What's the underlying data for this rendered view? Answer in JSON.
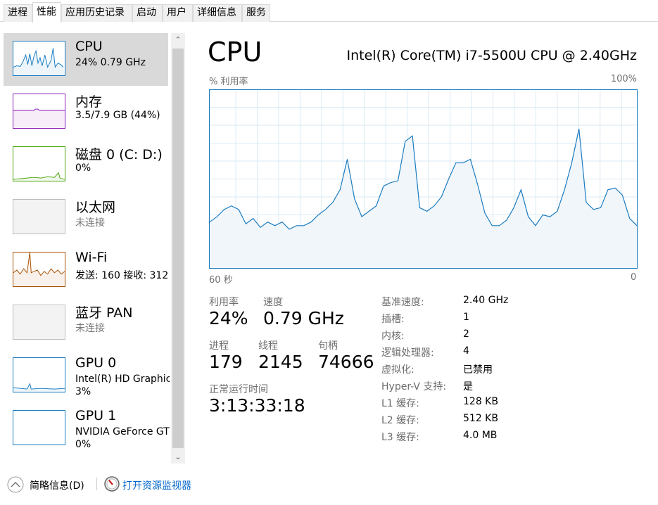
{
  "tabs": [
    "进程",
    "性能",
    "应用历史记录",
    "启动",
    "用户",
    "详细信息",
    "服务"
  ],
  "active_tab": 1,
  "sidebar": {
    "items": [
      {
        "name": "CPU",
        "sub": "24% 0.79 GHz",
        "color": "#1a7cc1"
      },
      {
        "name": "内存",
        "sub": "3.5/7.9 GB (44%)",
        "color": "#8e1cb3"
      },
      {
        "name": "磁盘 0 (C: D:)",
        "sub": "0%",
        "color": "#4da60c"
      },
      {
        "name": "以太网",
        "sub": "未连接",
        "color": "#bdbdbd"
      },
      {
        "name": "Wi-Fi",
        "sub": "发送: 160 接收: 312",
        "color": "#a74f01"
      },
      {
        "name": "蓝牙 PAN",
        "sub": "未连接",
        "color": "#bdbdbd"
      },
      {
        "name": "GPU 0",
        "sub": "Intel(R) HD Graphics",
        "sub2": "3%",
        "color": "#1a7cc1"
      },
      {
        "name": "GPU 1",
        "sub": "NVIDIA GeForce GTX",
        "sub2": "0%",
        "color": "#1a7cc1"
      }
    ]
  },
  "main": {
    "title": "CPU",
    "model": "Intel(R) Core(TM) i7-5500U CPU @ 2.40GHz",
    "y_label": "% 利用率",
    "y_max_label": "100%",
    "x_left_label": "60 秒",
    "x_right_label": "0",
    "stats": {
      "util_label": "利用率",
      "util": "24%",
      "speed_label": "速度",
      "speed": "0.79 GHz",
      "proc_label": "进程",
      "proc": "179",
      "threads_label": "线程",
      "threads": "2145",
      "handles_label": "句柄",
      "handles": "74666",
      "uptime_label": "正常运行时间",
      "uptime": "3:13:33:18"
    },
    "specs": [
      {
        "k": "基准速度:",
        "v": "2.40 GHz"
      },
      {
        "k": "插槽:",
        "v": "1"
      },
      {
        "k": "内核:",
        "v": "2"
      },
      {
        "k": "逻辑处理器:",
        "v": "4"
      },
      {
        "k": "虚拟化:",
        "v": "已禁用"
      },
      {
        "k": "Hyper-V 支持:",
        "v": "是"
      },
      {
        "k": "L1 缓存:",
        "v": "128 KB"
      },
      {
        "k": "L2 缓存:",
        "v": "512 KB"
      },
      {
        "k": "L3 缓存:",
        "v": "4.0 MB"
      }
    ]
  },
  "chart_data": {
    "type": "area",
    "ylim": [
      0,
      100
    ],
    "xlim": [
      60,
      0
    ],
    "grid": true,
    "color": "#1a7cc1",
    "fill": "#f1f6fa",
    "values": [
      26,
      29,
      33,
      35,
      33,
      25,
      28,
      23,
      26,
      24,
      26,
      22,
      24,
      24,
      26,
      30,
      33,
      37,
      44,
      61,
      39,
      29,
      32,
      35,
      46,
      48,
      49,
      71,
      74,
      34,
      32,
      35,
      40,
      50,
      59,
      59,
      61,
      47,
      31,
      24,
      24,
      27,
      34,
      44,
      29,
      24,
      30,
      29,
      32,
      44,
      59,
      78,
      37,
      33,
      34,
      44,
      45,
      41,
      28,
      24
    ]
  },
  "footer": {
    "fewer_details": "简略信息(D)",
    "resource_monitor": "打开资源监视器",
    "link_color": "#0066cc"
  }
}
